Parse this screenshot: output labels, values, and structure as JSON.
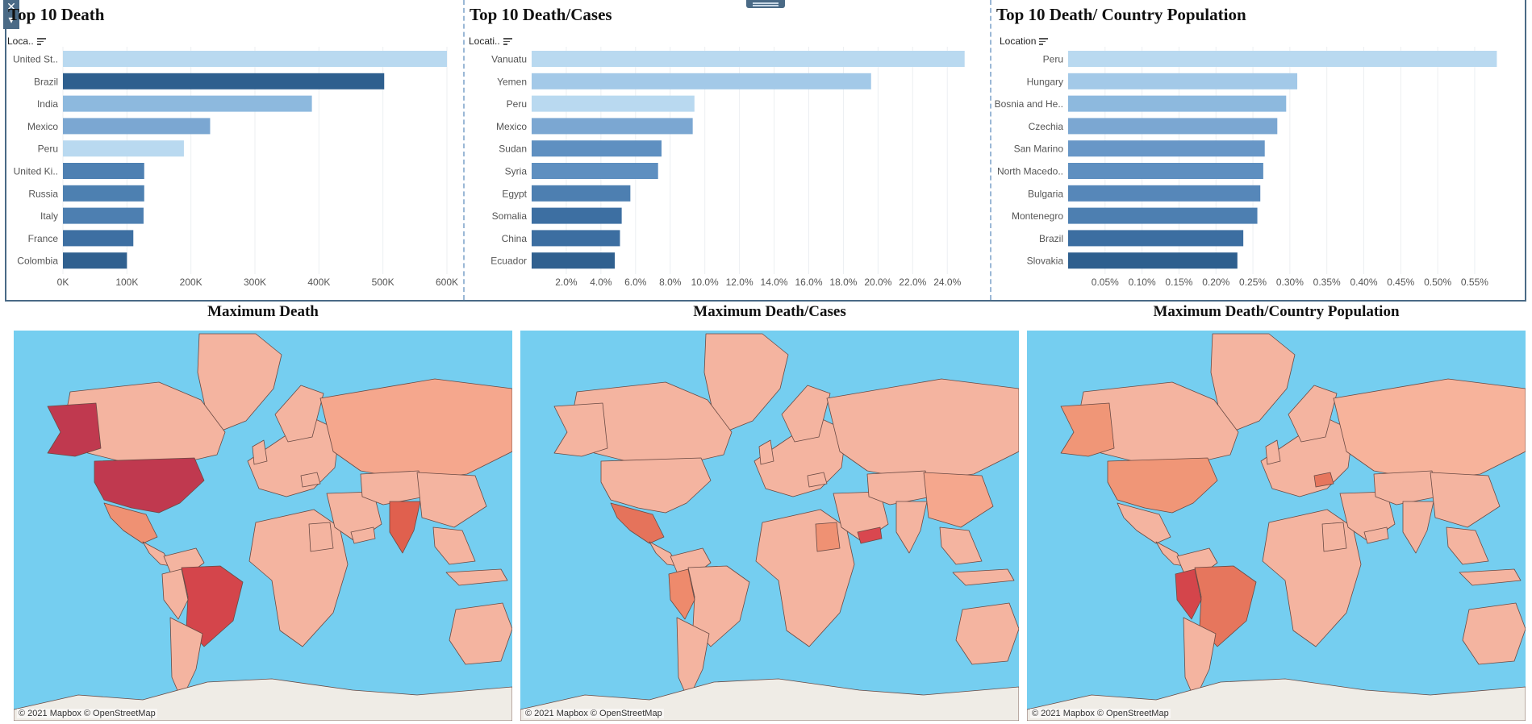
{
  "dashboard": {
    "colors": {
      "frame": "#4a6a86",
      "ocean": "#75cef0",
      "land": "#f4b4a0",
      "antarctica": "#efece6",
      "bar_light": "#b9d9f0",
      "bar_dark": "#2b5a86"
    },
    "icons": {
      "close": "close-icon",
      "sort": "sort-icon",
      "drag": "drag-handle-icon"
    }
  },
  "chart_data": [
    {
      "type": "bar",
      "orientation": "horizontal",
      "title": "Top 10 Death",
      "field_label": "Loca..",
      "categories": [
        "United St..",
        "Brazil",
        "India",
        "Mexico",
        "Peru",
        "United Ki..",
        "Russia",
        "Italy",
        "France",
        "Colombia"
      ],
      "values": [
        600000,
        502000,
        389000,
        230000,
        189000,
        127000,
        127000,
        126000,
        110000,
        100000
      ],
      "colors": [
        "#b9d9f0",
        "#2e5f8e",
        "#8db9de",
        "#7ba7d2",
        "#b9d9f0",
        "#4e80b2",
        "#4d80b1",
        "#4d7fb1",
        "#3d6fa2",
        "#30608f"
      ],
      "xlim": [
        0,
        600000
      ],
      "xticks": [
        "0K",
        "100K",
        "200K",
        "300K",
        "400K",
        "500K",
        "600K"
      ],
      "xtick_values": [
        0,
        100000,
        200000,
        300000,
        400000,
        500000,
        600000
      ],
      "grid": true
    },
    {
      "type": "bar",
      "orientation": "horizontal",
      "title": "Top 10 Death/Cases",
      "field_label": "Locati..",
      "categories": [
        "Vanuatu",
        "Yemen",
        "Peru",
        "Mexico",
        "Sudan",
        "Syria",
        "Egypt",
        "Somalia",
        "China",
        "Ecuador"
      ],
      "values": [
        25.0,
        19.6,
        9.4,
        9.3,
        7.5,
        7.3,
        5.7,
        5.2,
        5.1,
        4.8
      ],
      "colors": [
        "#b9d9f0",
        "#a3c9e8",
        "#b9d9f0",
        "#7ba7d2",
        "#5f90c1",
        "#5e8fc0",
        "#4d7fb1",
        "#3d6fa2",
        "#3c6ea1",
        "#30608f"
      ],
      "xlim": [
        0,
        25.2
      ],
      "xticks": [
        "2.0%",
        "4.0%",
        "6.0%",
        "8.0%",
        "10.0%",
        "12.0%",
        "14.0%",
        "16.0%",
        "18.0%",
        "20.0%",
        "22.0%",
        "24.0%"
      ],
      "xtick_values": [
        2,
        4,
        6,
        8,
        10,
        12,
        14,
        16,
        18,
        20,
        22,
        24
      ],
      "grid": true
    },
    {
      "type": "bar",
      "orientation": "horizontal",
      "title": "Top 10 Death/ Country Population",
      "field_label": "Location",
      "categories": [
        "Peru",
        "Hungary",
        "Bosnia and He..",
        "Czechia",
        "San Marino",
        "North Macedo..",
        "Bulgaria",
        "Montenegro",
        "Brazil",
        "Slovakia"
      ],
      "values": [
        0.58,
        0.31,
        0.295,
        0.283,
        0.266,
        0.264,
        0.26,
        0.256,
        0.237,
        0.229
      ],
      "colors": [
        "#b9d9f0",
        "#a3c9e8",
        "#8db9de",
        "#7ba7d2",
        "#6897c7",
        "#5e8fc0",
        "#5687b9",
        "#4d7fb1",
        "#3c6ea1",
        "#2e5f8e"
      ],
      "xlim": [
        0,
        0.585
      ],
      "xticks": [
        "0.05%",
        "0.10%",
        "0.15%",
        "0.20%",
        "0.25%",
        "0.30%",
        "0.35%",
        "0.40%",
        "0.45%",
        "0.50%",
        "0.55%"
      ],
      "xtick_values": [
        0.05,
        0.1,
        0.15,
        0.2,
        0.25,
        0.3,
        0.35,
        0.4,
        0.45,
        0.5,
        0.55
      ],
      "grid": true
    }
  ],
  "maps": [
    {
      "title": "Maximum Death",
      "credit": "© 2021 Mapbox © OpenStreetMap",
      "highlights": [
        {
          "region": "United States",
          "color": "#c0394f"
        },
        {
          "region": "Alaska",
          "color": "#c0394f"
        },
        {
          "region": "Brazil",
          "color": "#d4454b"
        },
        {
          "region": "India",
          "color": "#e0604e"
        },
        {
          "region": "Mexico",
          "color": "#ef9173"
        },
        {
          "region": "Russia",
          "color": "#f5a78d"
        }
      ]
    },
    {
      "title": "Maximum Death/Cases",
      "credit": "© 2021 Mapbox © OpenStreetMap",
      "highlights": [
        {
          "region": "Yemen",
          "color": "#d9474f"
        },
        {
          "region": "Mexico",
          "color": "#e5735b"
        },
        {
          "region": "Peru",
          "color": "#ee8a6c"
        },
        {
          "region": "Sudan",
          "color": "#ef9173"
        },
        {
          "region": "China",
          "color": "#f5a78d"
        }
      ]
    },
    {
      "title": "Maximum Death/Country Population",
      "credit": "© 2021 Mapbox © OpenStreetMap",
      "highlights": [
        {
          "region": "Peru",
          "color": "#d4454b"
        },
        {
          "region": "Brazil",
          "color": "#e6765d"
        },
        {
          "region": "United States",
          "color": "#f09677"
        },
        {
          "region": "Alaska",
          "color": "#f09677"
        },
        {
          "region": "Hungary",
          "color": "#e6765d"
        },
        {
          "region": "Russia",
          "color": "#f7b39b"
        }
      ]
    }
  ]
}
